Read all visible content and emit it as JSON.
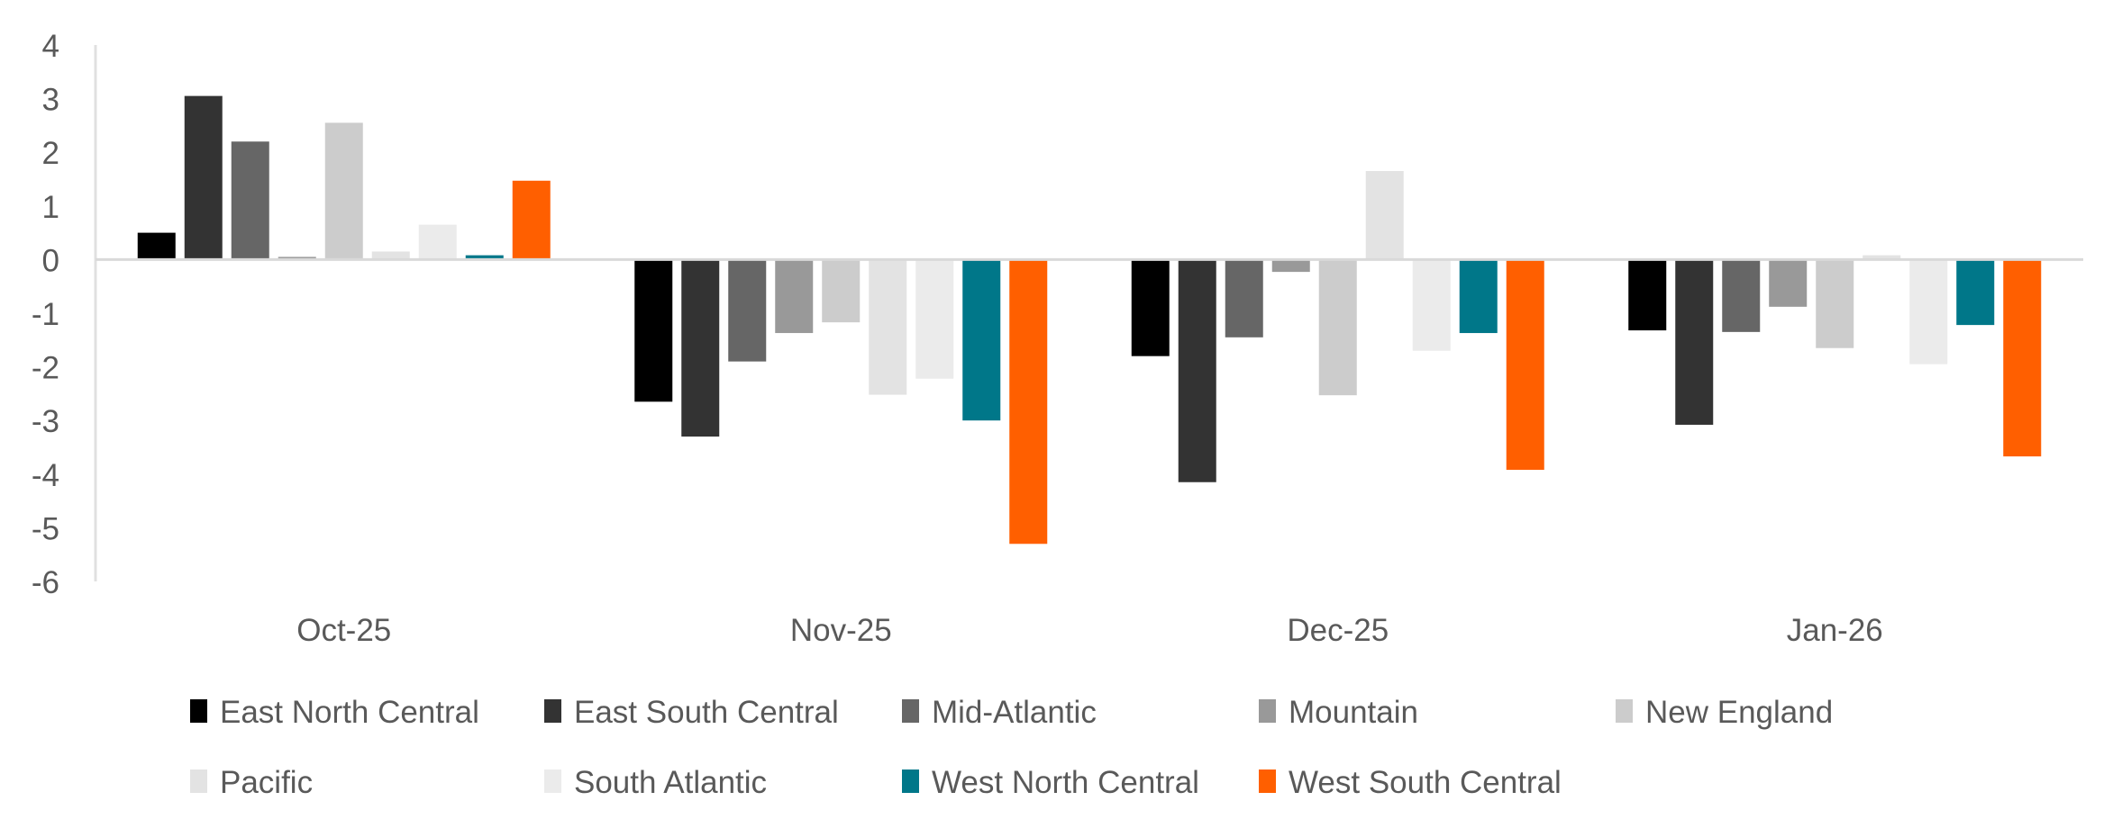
{
  "chart_data": {
    "type": "bar",
    "title": "",
    "xlabel": "",
    "ylabel": "",
    "ylim": [
      -6,
      4
    ],
    "yticks": [
      "4",
      "3",
      "2",
      "1",
      "0",
      "-1",
      "-2",
      "-3",
      "-4",
      "-5",
      "-6"
    ],
    "grid": false,
    "legend_position": "bottom",
    "categories": [
      "Oct-25",
      "Nov-25",
      "Dec-25",
      "Jan-26"
    ],
    "series": [
      {
        "name": "East North Central",
        "color": "#000000",
        "values": [
          0.5,
          -2.65,
          -1.8,
          -1.32
        ]
      },
      {
        "name": "East South Central",
        "color": "#333333",
        "values": [
          3.05,
          -3.3,
          -4.15,
          -3.08
        ]
      },
      {
        "name": "Mid-Atlantic",
        "color": "#666666",
        "values": [
          2.2,
          -1.9,
          -1.45,
          -1.35
        ]
      },
      {
        "name": "Mountain",
        "color": "#999999",
        "values": [
          0.05,
          -1.37,
          -0.23,
          -0.88
        ]
      },
      {
        "name": "New England",
        "color": "#cccccc",
        "values": [
          2.55,
          -1.17,
          -2.53,
          -1.65
        ]
      },
      {
        "name": "Pacific",
        "color": "#e3e3e3",
        "values": [
          0.15,
          -2.52,
          1.65,
          0.08
        ]
      },
      {
        "name": "South Atlantic",
        "color": "#ebebeb",
        "values": [
          0.65,
          -2.22,
          -1.7,
          -1.95
        ]
      },
      {
        "name": "West North Central",
        "color": "#007789",
        "values": [
          0.08,
          -3.0,
          -1.37,
          -1.22
        ]
      },
      {
        "name": "West South Central",
        "color": "#ff5f00",
        "values": [
          1.47,
          -5.3,
          -3.92,
          -3.67
        ]
      }
    ]
  }
}
